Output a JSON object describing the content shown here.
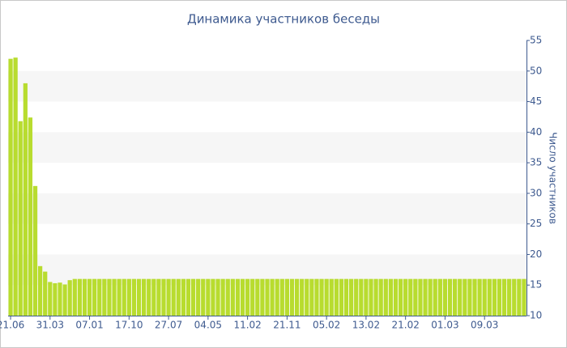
{
  "chart_data": {
    "type": "bar",
    "title": "Динамика участников беседы",
    "y_axis_label": "Число участников",
    "categories": [
      "21.06",
      null,
      null,
      null,
      null,
      null,
      null,
      null,
      "31.03",
      null,
      null,
      null,
      null,
      null,
      null,
      null,
      "07.01",
      null,
      null,
      null,
      null,
      null,
      null,
      null,
      "17.10",
      null,
      null,
      null,
      null,
      null,
      null,
      null,
      "27.07",
      null,
      null,
      null,
      null,
      null,
      null,
      null,
      "04.05",
      null,
      null,
      null,
      null,
      null,
      null,
      null,
      "11.02",
      null,
      null,
      null,
      null,
      null,
      null,
      null,
      "21.11",
      null,
      null,
      null,
      null,
      null,
      null,
      null,
      "05.02",
      null,
      null,
      null,
      null,
      null,
      null,
      null,
      "13.02",
      null,
      null,
      null,
      null,
      null,
      null,
      null,
      "21.02",
      null,
      null,
      null,
      null,
      null,
      null,
      null,
      "01.03",
      null,
      null,
      null,
      null,
      null,
      null,
      null,
      "09.03",
      null,
      null,
      null,
      null,
      null,
      null,
      null,
      null
    ],
    "values": [
      52,
      52.2,
      41.8,
      48,
      42.4,
      31.2,
      18.1,
      17.2,
      15.5,
      15.3,
      15.4,
      15.1,
      15.8,
      16,
      16,
      16,
      16,
      16,
      16,
      16,
      16,
      16,
      16,
      16,
      16,
      16,
      16,
      16,
      16,
      16,
      16,
      16,
      16,
      16,
      16,
      16,
      16,
      16,
      16,
      16,
      16,
      16,
      16,
      16,
      16,
      16,
      16,
      16,
      16,
      16,
      16,
      16,
      16,
      16,
      16,
      16,
      16,
      16,
      16,
      16,
      16,
      16,
      16,
      16,
      16,
      16,
      16,
      16,
      16,
      16,
      16,
      16,
      16,
      16,
      16,
      16,
      16,
      16,
      16,
      16,
      16,
      16,
      16,
      16,
      16,
      16,
      16,
      16,
      16,
      16,
      16,
      16,
      16,
      16,
      16,
      16,
      16,
      16,
      16,
      16,
      16,
      16,
      16,
      16,
      16
    ],
    "color": "#b8dc2f",
    "axis_side": "right",
    "ylim": [
      10,
      55
    ],
    "yticks": [
      10,
      15,
      20,
      25,
      30,
      35,
      40,
      45,
      50,
      55
    ],
    "grid": "bands"
  }
}
